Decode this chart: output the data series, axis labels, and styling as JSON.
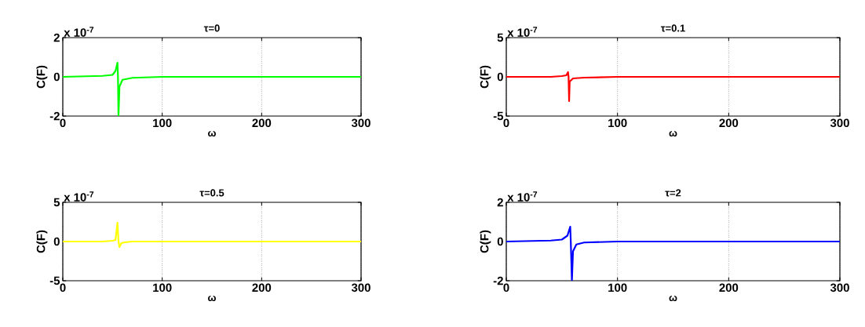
{
  "chart_data": [
    {
      "type": "line",
      "title": "τ=0",
      "xlabel": "ω",
      "ylabel": "C(F)",
      "annotations": [
        "x 10$^{-7}$"
      ],
      "xlim": [
        0,
        300
      ],
      "xticks": [
        0,
        100,
        200,
        300
      ],
      "ylim": [
        -2,
        2
      ],
      "yticks": [
        -2,
        0,
        2
      ],
      "grid": "x",
      "x": [
        0,
        40,
        50,
        53,
        55,
        55.5,
        56,
        57,
        60,
        70,
        100,
        300
      ],
      "series": [
        {
          "color": "#00ff00",
          "values": [
            0,
            0.05,
            0.1,
            0.3,
            0.72,
            0,
            -2,
            -0.5,
            -0.15,
            -0.05,
            0,
            0
          ]
        }
      ]
    },
    {
      "type": "line",
      "title": "τ=0.1",
      "xlabel": "ω",
      "ylabel": "C(F)",
      "annotations": [
        "x 10$^{-7}$"
      ],
      "xlim": [
        0,
        300
      ],
      "xticks": [
        0,
        100,
        200,
        300
      ],
      "ylim": [
        -5,
        5
      ],
      "yticks": [
        -5,
        0,
        5
      ],
      "grid": "x",
      "x": [
        0,
        40,
        50,
        54,
        55.5,
        56,
        56.5,
        57,
        60,
        70,
        100,
        300
      ],
      "series": [
        {
          "color": "#ff0000",
          "values": [
            0,
            0,
            0.1,
            0.2,
            0.6,
            0,
            -3.1,
            -0.6,
            -0.2,
            -0.1,
            0,
            0
          ]
        }
      ]
    },
    {
      "type": "line",
      "title": "τ=0.5",
      "xlabel": "ω",
      "ylabel": "C(F)",
      "annotations": [
        "x 10$^{-7}$"
      ],
      "xlim": [
        0,
        300
      ],
      "xticks": [
        0,
        100,
        200,
        300
      ],
      "ylim": [
        -5,
        5
      ],
      "yticks": [
        -5,
        0,
        5
      ],
      "grid": "x",
      "x": [
        0,
        40,
        50,
        53,
        55,
        56,
        57,
        59,
        62,
        70,
        100,
        300
      ],
      "series": [
        {
          "color": "#ffff00",
          "values": [
            0,
            0,
            0.1,
            0.2,
            2.4,
            0,
            -0.7,
            -0.2,
            -0.1,
            0,
            0,
            0
          ]
        }
      ]
    },
    {
      "type": "line",
      "title": "τ=2",
      "xlabel": "ω",
      "ylabel": "C(F)",
      "annotations": [
        "x 10$^{-7}$"
      ],
      "xlim": [
        0,
        300
      ],
      "xticks": [
        0,
        100,
        200,
        300
      ],
      "ylim": [
        -2,
        2
      ],
      "yticks": [
        -2,
        0,
        2
      ],
      "grid": "x",
      "x": [
        0,
        40,
        50,
        55,
        57.5,
        58,
        59,
        60,
        63,
        70,
        100,
        300
      ],
      "series": [
        {
          "color": "#0000ff",
          "values": [
            0,
            0.05,
            0.1,
            0.3,
            0.76,
            0,
            -2,
            -0.5,
            -0.15,
            -0.05,
            0,
            0
          ]
        }
      ]
    }
  ]
}
